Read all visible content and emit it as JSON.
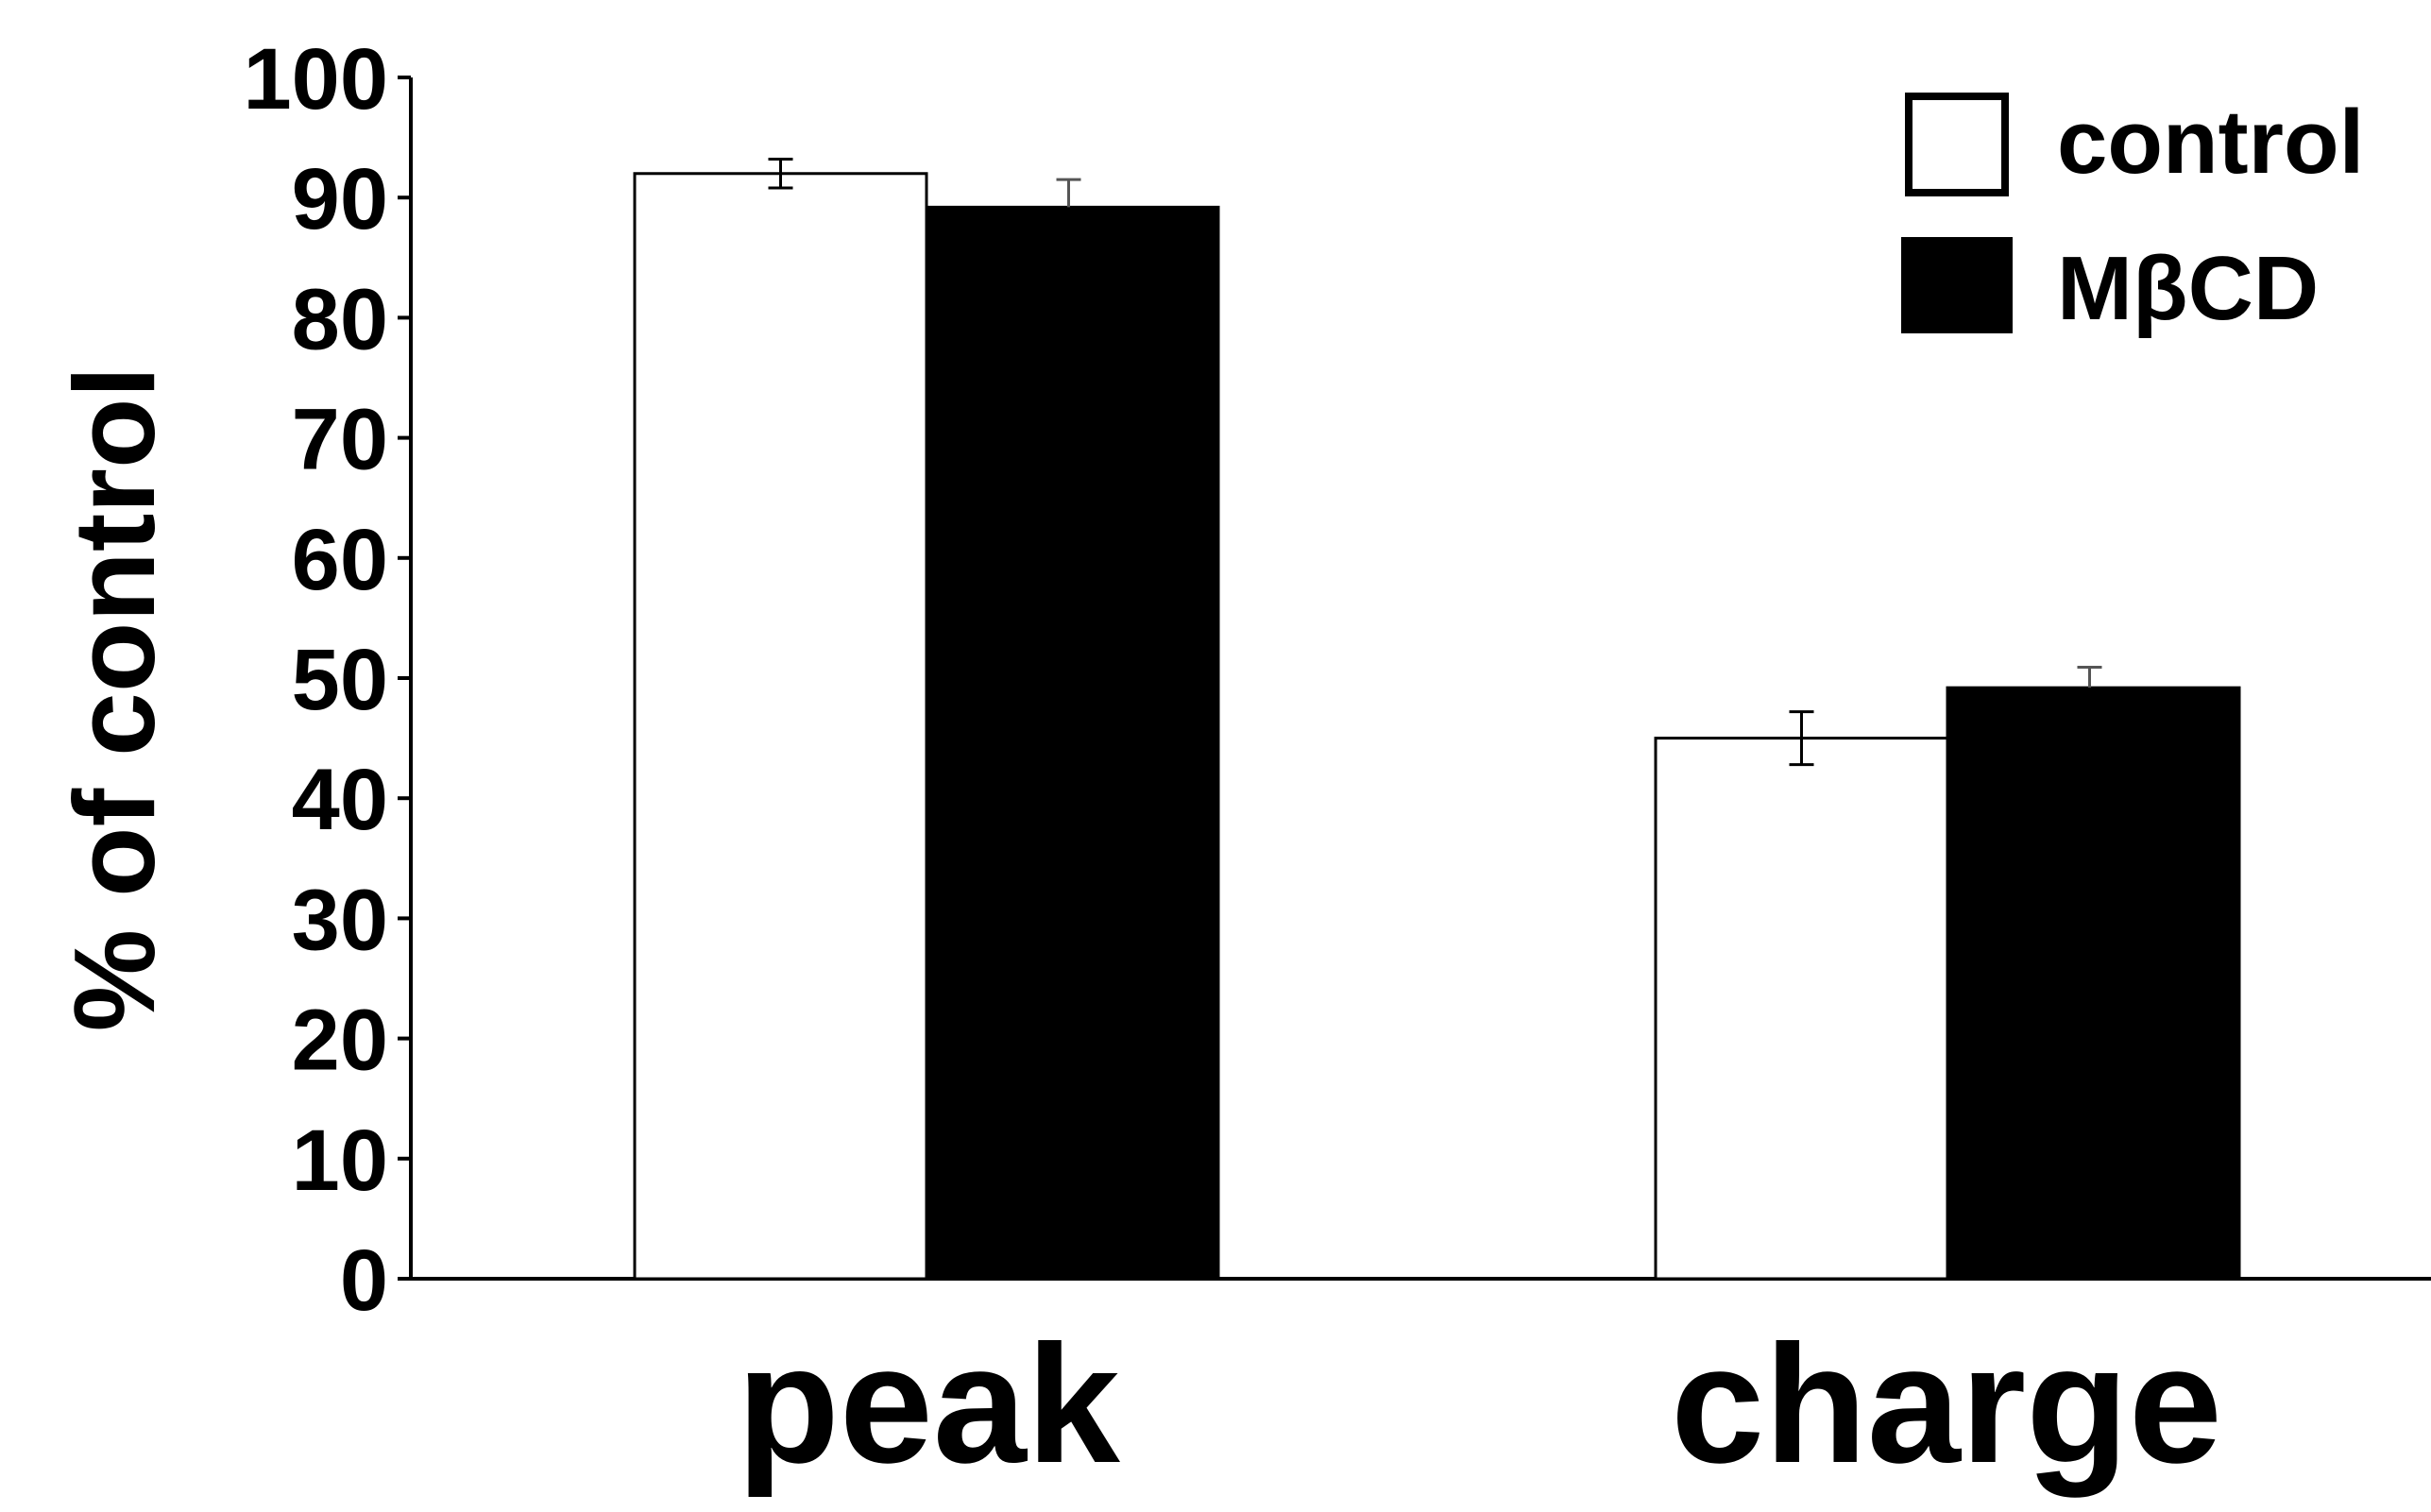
{
  "chart_data": {
    "type": "bar",
    "title": "",
    "xlabel": "",
    "ylabel": "% of control",
    "ylim": [
      0,
      100
    ],
    "yticks": [
      "0",
      "10",
      "20",
      "30",
      "40",
      "50",
      "60",
      "70",
      "80",
      "90",
      "100"
    ],
    "categories": [
      "peak",
      "charge"
    ],
    "grid": false,
    "legend_position": "top-right",
    "series": [
      {
        "name": "control",
        "values": [
          92,
          45
        ],
        "errors": [
          1.2,
          2.2
        ],
        "fill": "#ffffff",
        "stroke": "#000000"
      },
      {
        "name": "MβCD",
        "values": [
          89.2,
          49.2
        ],
        "errors": [
          2.3,
          1.7
        ],
        "fill": "#000000",
        "stroke": "#000000"
      }
    ]
  }
}
